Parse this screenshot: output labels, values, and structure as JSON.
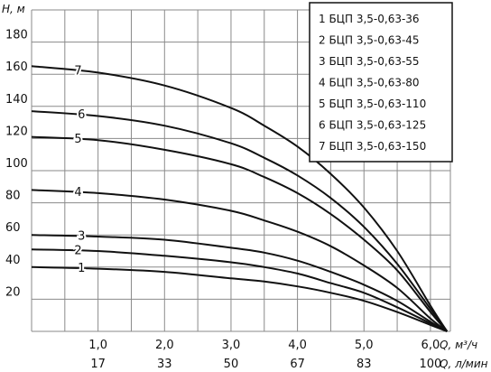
{
  "chart_data": {
    "type": "line",
    "ylabel": "H, м",
    "xlabel": "Q, м³/ч",
    "xlabel2": "Q, л/мин",
    "xlim": [
      0,
      6.3
    ],
    "ylim": [
      0,
      200
    ],
    "yticks": [
      20,
      40,
      60,
      80,
      100,
      120,
      140,
      160,
      180
    ],
    "xticks": [
      "1,0",
      "2,0",
      "3,0",
      "4,0",
      "5,0",
      "6,0"
    ],
    "xtick_values": [
      1,
      2,
      3,
      4,
      5,
      6
    ],
    "xticks2": [
      "17",
      "33",
      "50",
      "67",
      "83",
      "100"
    ],
    "grid": true,
    "legend_position": "top-right",
    "series": [
      {
        "name": "БЦП 3,5-0,63-36",
        "number": "1",
        "label_x": 0.75,
        "x": [
          0,
          1,
          2,
          3,
          3.5,
          4,
          4.5,
          5,
          5.5,
          6.0,
          6.25
        ],
        "y": [
          40,
          39,
          37,
          33,
          31,
          28,
          24,
          19,
          12,
          4,
          0
        ]
      },
      {
        "name": "БЦП 3,5-0,63-45",
        "number": "2",
        "label_x": 0.7,
        "x": [
          0,
          1,
          2,
          3,
          3.5,
          4,
          4.5,
          5,
          5.5,
          6.0,
          6.25
        ],
        "y": [
          51,
          50,
          47,
          43,
          40,
          36,
          30,
          24,
          15,
          5,
          0
        ]
      },
      {
        "name": "БЦП 3,5-0,63-55",
        "number": "3",
        "label_x": 0.75,
        "x": [
          0,
          1,
          2,
          3,
          3.5,
          4,
          4.5,
          5,
          5.5,
          6.0,
          6.25
        ],
        "y": [
          60,
          59,
          57,
          52,
          49,
          44,
          37,
          29,
          19,
          6,
          0
        ]
      },
      {
        "name": "БЦП 3,5-0,63-80",
        "number": "4",
        "label_x": 0.7,
        "x": [
          0,
          1,
          2,
          3,
          3.5,
          4,
          4.5,
          5,
          5.5,
          6.0,
          6.25
        ],
        "y": [
          88,
          86,
          82,
          75,
          69,
          62,
          53,
          41,
          27,
          8,
          0
        ]
      },
      {
        "name": "БЦП 3,5-0,63-110",
        "number": "5",
        "label_x": 0.7,
        "x": [
          0,
          1,
          2,
          3,
          3.5,
          4,
          4.5,
          5,
          5.5,
          6.0,
          6.25
        ],
        "y": [
          121,
          119,
          113,
          104,
          96,
          86,
          73,
          57,
          38,
          12,
          0
        ]
      },
      {
        "name": "БЦП 3,5-0,63-125",
        "number": "6",
        "label_x": 0.75,
        "x": [
          0,
          1,
          2,
          3,
          3.5,
          4,
          4.5,
          5,
          5.5,
          6.0,
          6.25
        ],
        "y": [
          137,
          134,
          128,
          117,
          108,
          97,
          83,
          65,
          42,
          14,
          0
        ]
      },
      {
        "name": "БЦП 3,5-0,63-150",
        "number": "7",
        "label_x": 0.7,
        "x": [
          0,
          1,
          2,
          3,
          3.5,
          4,
          4.5,
          5,
          5.5,
          6.0,
          6.25
        ],
        "y": [
          165,
          161,
          153,
          139,
          128,
          115,
          98,
          77,
          50,
          16,
          0
        ]
      }
    ]
  }
}
